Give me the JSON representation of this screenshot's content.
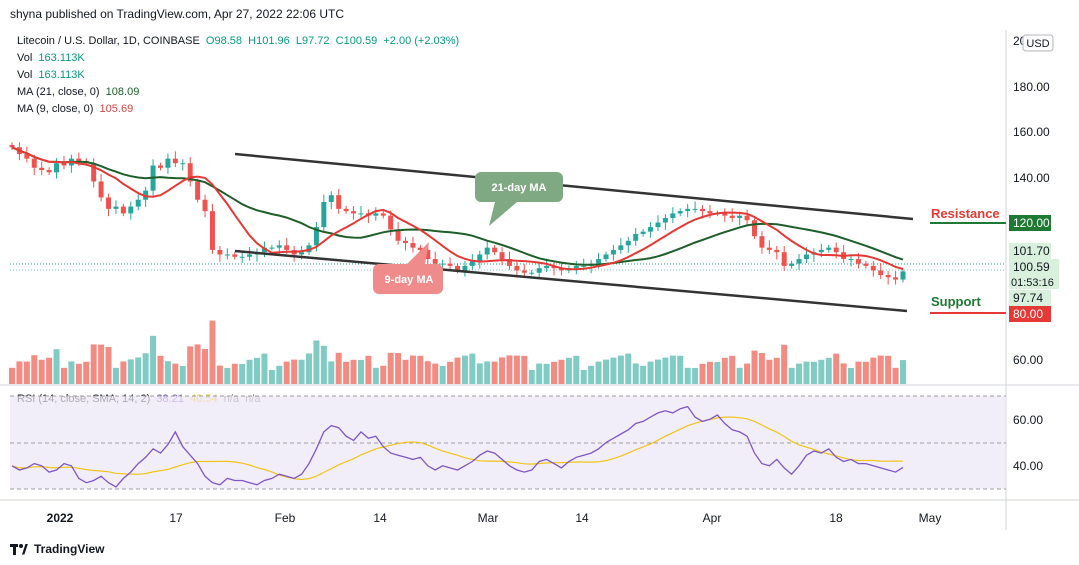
{
  "header": {
    "text": "shyna published on TradingView.com, Apr 27, 2022 22:06 UTC"
  },
  "legend": {
    "symbol": "Litecoin / U.S. Dollar, 1D, COINBASE",
    "open": "O98.58",
    "high": "H101.96",
    "low": "L97.72",
    "close": "C100.59",
    "change": "+2.00 (+2.03%)",
    "vol_label": "Vol",
    "vol_value": "163.113K",
    "ma21_label": "MA (21, close, 0)",
    "ma21_value": "108.09",
    "ma9_label": "MA (9, close, 0)",
    "ma9_value": "105.69",
    "rsi_label": "RSI (14, close, SMA, 14, 2)",
    "rsi_value": "38.21",
    "rsi_ma_value": "40.54",
    "na1": "n/a",
    "na2": "n/a"
  },
  "annotations": {
    "ma21_callout": "21-day MA",
    "ma9_callout": "9-day MA",
    "resistance": "Resistance",
    "support": "Support"
  },
  "price_axis": {
    "currency": "USD",
    "ticks": [
      "200.00",
      "180.00",
      "160.00",
      "140.00",
      "120.00",
      "60.00"
    ],
    "badges": [
      {
        "label": "120.00",
        "color": "#1e7a33"
      },
      {
        "label": "101.70",
        "color": "#d8f0dc"
      },
      {
        "label": "100.59",
        "color": "#d8f0dc"
      },
      {
        "label": "01:53:16",
        "color": "#d8f0dc"
      },
      {
        "label": "97.74",
        "color": "#d8f0dc"
      },
      {
        "label": "80.00",
        "color": "#e53935"
      }
    ]
  },
  "rsi_axis": {
    "ticks": [
      "60.00",
      "40.00"
    ]
  },
  "time_axis": {
    "ticks": [
      "2022",
      "17",
      "Feb",
      "14",
      "Mar",
      "14",
      "Apr",
      "18",
      "May"
    ]
  },
  "colors": {
    "up": "#26a69a",
    "down": "#ef5350",
    "ma21": "#1e5e2b",
    "ma9": "#e53935",
    "rsi": "#7e57c2",
    "rsi_ma": "#f0c419",
    "channel": "#333333"
  },
  "footer": {
    "brand": "TradingView"
  },
  "chart_data": {
    "type": "candlestick",
    "title": "Litecoin / U.S. Dollar, 1D, COINBASE",
    "ylim": [
      54,
      202
    ],
    "close_series": [
      155,
      152,
      150,
      146,
      145,
      144,
      148,
      147,
      150,
      149,
      148,
      140,
      133,
      128,
      129,
      126,
      129,
      132,
      136,
      147,
      146,
      150,
      148,
      148,
      140,
      132,
      127,
      110,
      108,
      108,
      107,
      107,
      108,
      109,
      111,
      111,
      112,
      110,
      108,
      109,
      112,
      120,
      131,
      134,
      128,
      127,
      126,
      126,
      125,
      126,
      125,
      119,
      114,
      113,
      111,
      110,
      106,
      104,
      104,
      103,
      101,
      103,
      105,
      108,
      111,
      109,
      106,
      103,
      101,
      100,
      100,
      102,
      103,
      102,
      101,
      102,
      103,
      103,
      104,
      106,
      108,
      110,
      112,
      114,
      117,
      118,
      120,
      122,
      124,
      126,
      127,
      128,
      128,
      127,
      126,
      126,
      125,
      124,
      125,
      123,
      116,
      111,
      110,
      109,
      103,
      104,
      106,
      108,
      109,
      110,
      111,
      109,
      106,
      106,
      104,
      103,
      101,
      99,
      98,
      97,
      100.59
    ],
    "resistance": 120.0,
    "support": 80.0,
    "current_price": 100.59,
    "rsi_ylim": [
      28,
      72
    ],
    "rsi_series": [
      39,
      37,
      38,
      40,
      39,
      36,
      37,
      40,
      39,
      33,
      31,
      32,
      34,
      31,
      29,
      33,
      36,
      40,
      43,
      47,
      45,
      49,
      55,
      48,
      44,
      40,
      34,
      31,
      30,
      33,
      32,
      32,
      31,
      30,
      32,
      33,
      35,
      34,
      33,
      35,
      40,
      47,
      55,
      58,
      57,
      53,
      51,
      55,
      52,
      53,
      48,
      45,
      44,
      43,
      42,
      43,
      39,
      37,
      39,
      38,
      37,
      39,
      41,
      44,
      46,
      45,
      42,
      39,
      37,
      36,
      37,
      41,
      42,
      40,
      38,
      41,
      43,
      44,
      45,
      47,
      50,
      52,
      54,
      56,
      59,
      60,
      62,
      64,
      65,
      64,
      66,
      67,
      62,
      60,
      61,
      63,
      59,
      56,
      55,
      53,
      45,
      40,
      39,
      42,
      38,
      35,
      39,
      44,
      46,
      45,
      47,
      43,
      41,
      42,
      40,
      40,
      39,
      38,
      37,
      36,
      38.21
    ],
    "rsi_bands": [
      30,
      50,
      70
    ]
  }
}
